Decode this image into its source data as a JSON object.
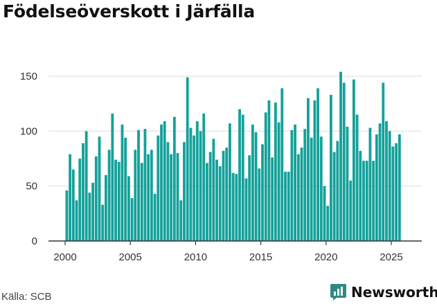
{
  "page": {
    "title": "Födelseöverskott i Järfälla",
    "source": "Källa: SCB",
    "brand": "Newsworthy"
  },
  "colors": {
    "bar": "#14a19a",
    "grid": "#e0e0e0",
    "axis": "#333333",
    "brand": "#2e8b84"
  },
  "chart_data": {
    "type": "bar",
    "title": "Födelseöverskott i Järfälla",
    "xlabel": "",
    "ylabel": "",
    "ylim": [
      0,
      160
    ],
    "yticks": [
      0,
      50,
      100,
      150
    ],
    "xticks": [
      2000,
      2005,
      2010,
      2015,
      2020,
      2025
    ],
    "x_start": 2000.0,
    "x_end": 2026.0,
    "step": 0.25,
    "grid": true,
    "series": [
      {
        "name": "Födelseöverskott",
        "values": [
          46,
          79,
          65,
          37,
          75,
          89,
          100,
          44,
          53,
          77,
          95,
          33,
          60,
          83,
          116,
          74,
          72,
          106,
          94,
          59,
          39,
          83,
          101,
          71,
          102,
          79,
          83,
          43,
          96,
          106,
          109,
          90,
          79,
          113,
          80,
          37,
          90,
          149,
          103,
          96,
          109,
          100,
          116,
          71,
          81,
          93,
          74,
          68,
          82,
          85,
          107,
          62,
          61,
          120,
          115,
          57,
          78,
          106,
          99,
          66,
          88,
          117,
          128,
          76,
          126,
          108,
          139,
          63,
          63,
          101,
          106,
          79,
          85,
          102,
          130,
          94,
          128,
          139,
          95,
          50,
          32,
          133,
          81,
          91,
          154,
          144,
          104,
          55,
          147,
          115,
          82,
          73,
          73,
          103,
          73,
          97,
          107,
          144,
          109,
          100,
          86,
          89,
          97
        ]
      }
    ]
  }
}
